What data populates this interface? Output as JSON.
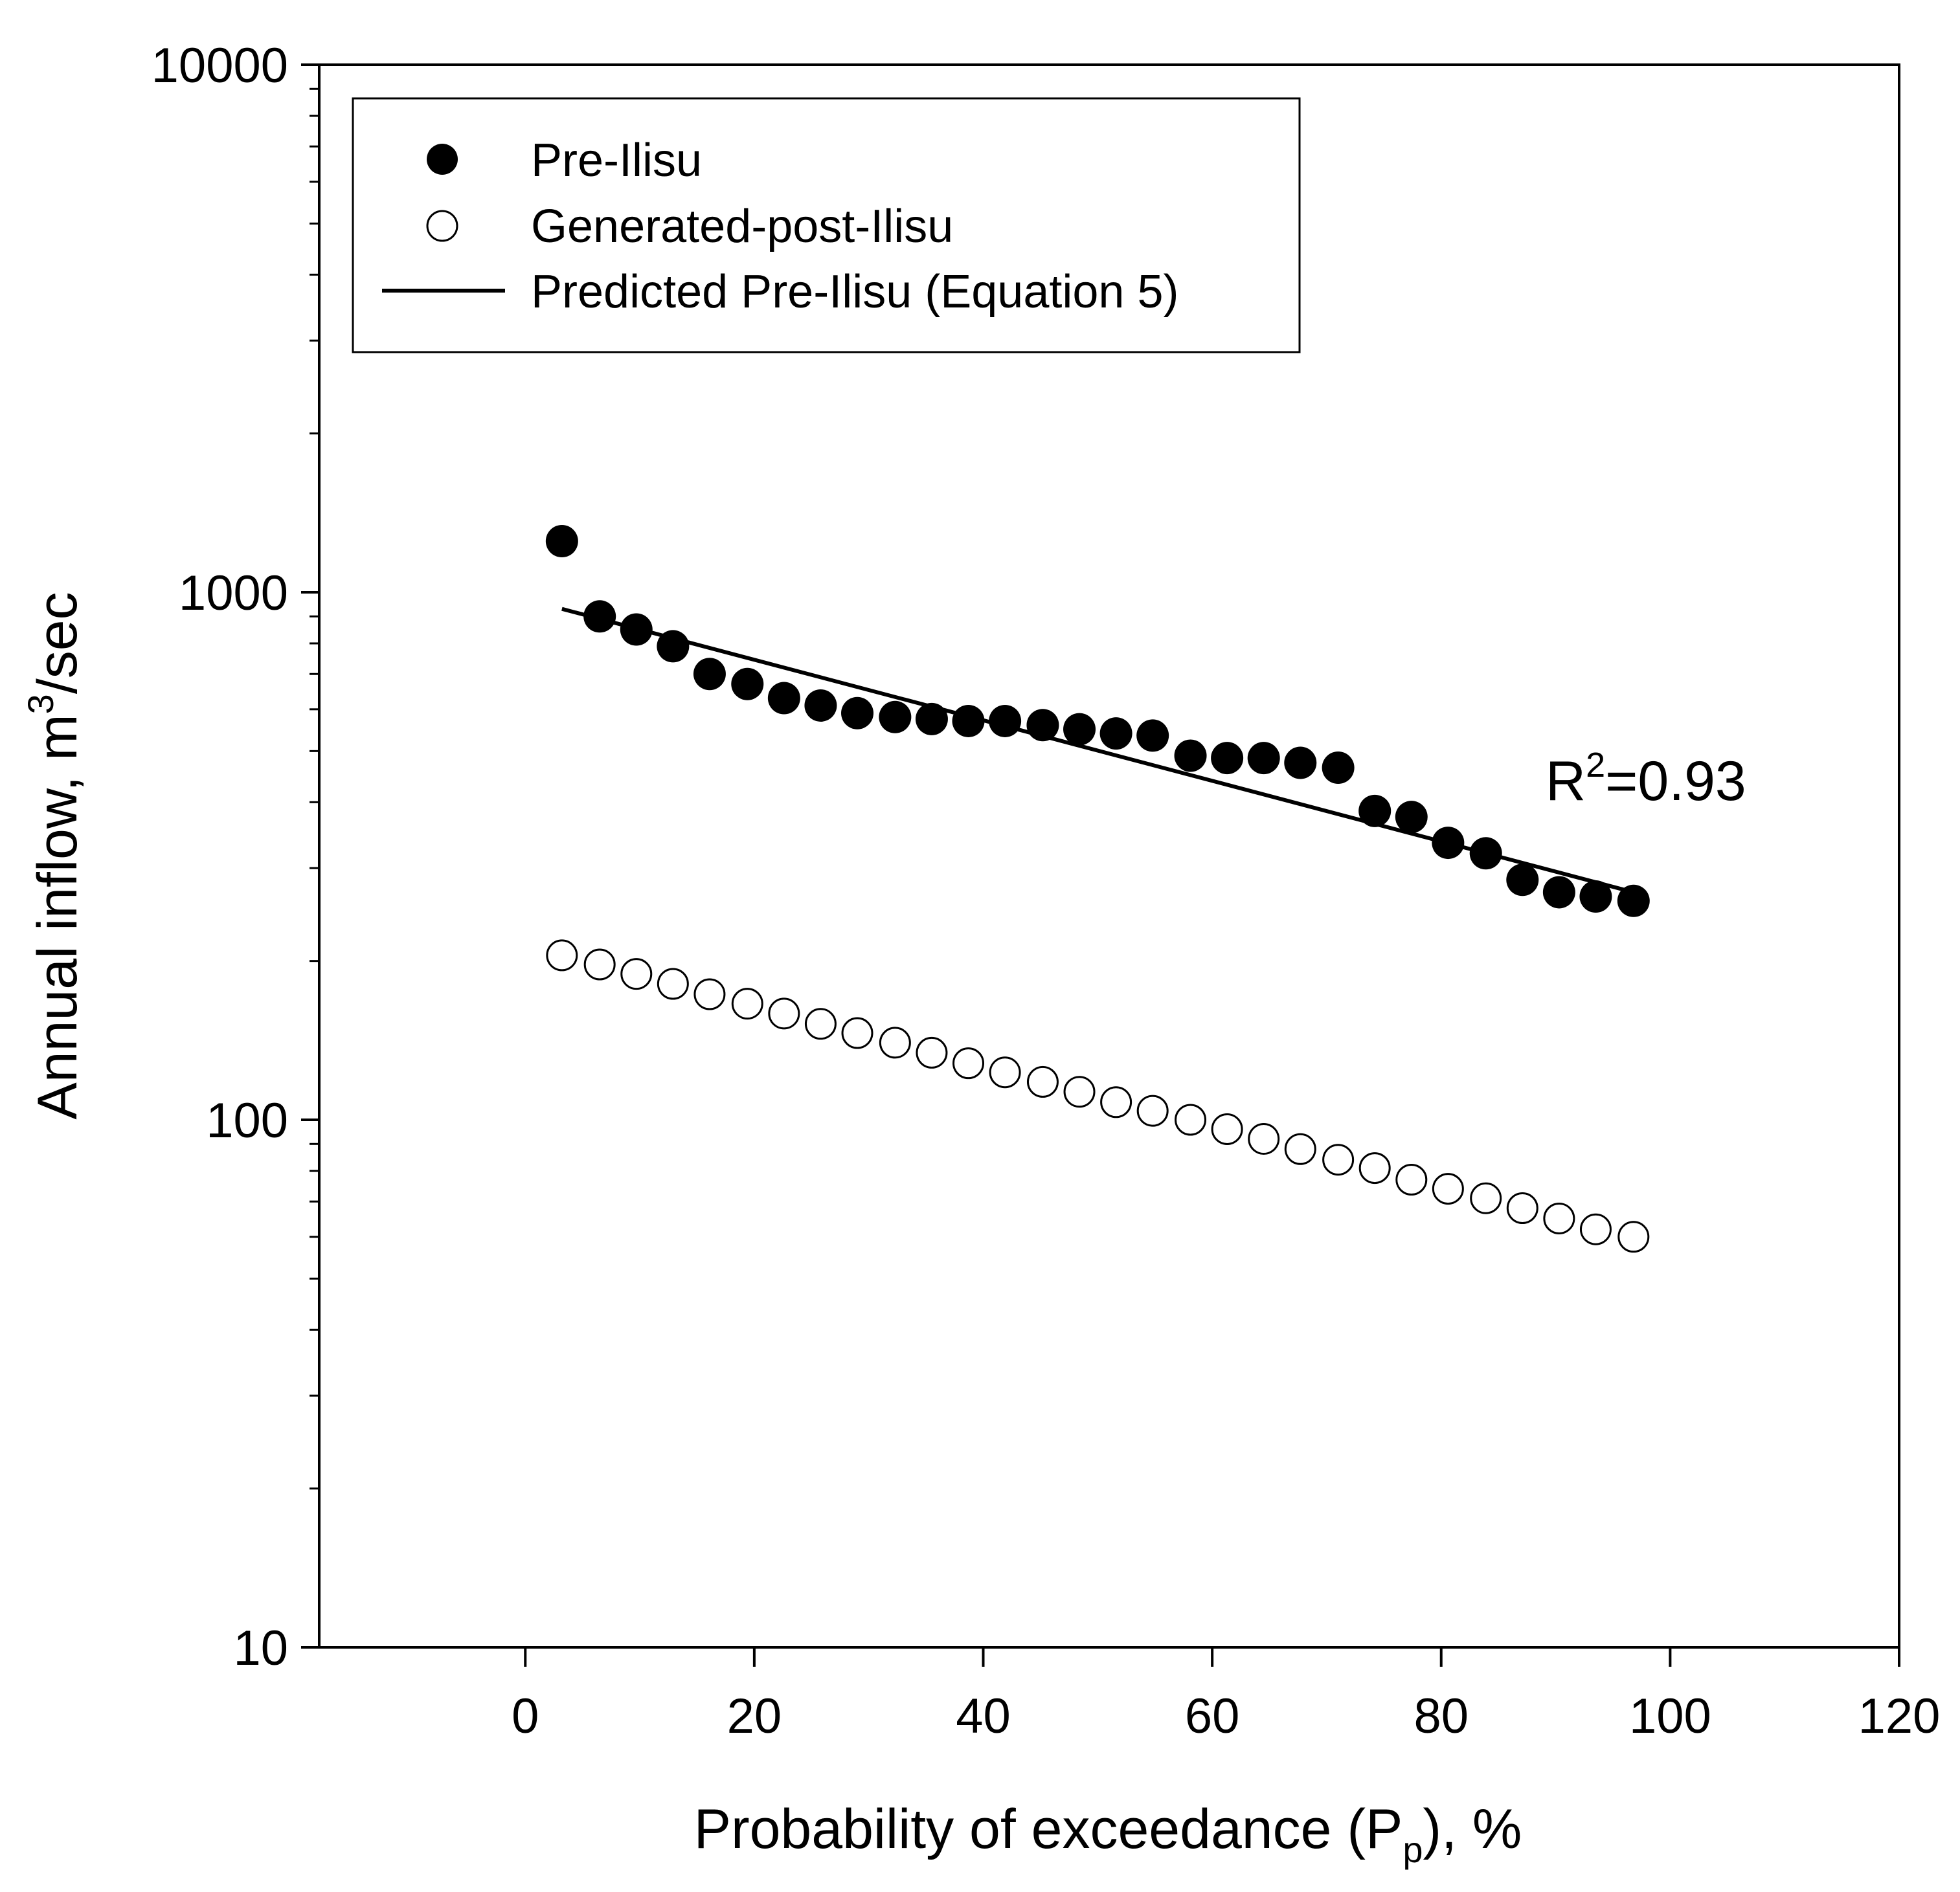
{
  "chart_data": {
    "type": "scatter",
    "title": "",
    "xlabel": "Probability of exceedance (P",
    "xlabel_sub": "p",
    "xlabel_suffix": "), %",
    "ylabel": "Annual inflow, m",
    "ylabel_sup": "3",
    "ylabel_suffix": "/sec",
    "xlim": [
      -18,
      120
    ],
    "ylim": [
      10,
      10000
    ],
    "yscale": "log",
    "xticks": [
      0,
      20,
      40,
      60,
      80,
      100,
      120
    ],
    "xtick_labels": [
      "0",
      "20",
      "40",
      "60",
      "80",
      "100",
      "120"
    ],
    "yticks": [
      10,
      100,
      1000,
      10000
    ],
    "ytick_labels": [
      "10",
      "100",
      "1000",
      "10000"
    ],
    "grid": false,
    "legend_position": "top-left",
    "series": [
      {
        "name": "Pre-Ilisu",
        "marker": "filled-circle",
        "color": "#000000",
        "x": [
          3.2,
          6.5,
          9.7,
          12.9,
          16.1,
          19.4,
          22.6,
          25.8,
          29.0,
          32.3,
          35.5,
          38.7,
          41.9,
          45.2,
          48.4,
          51.6,
          54.8,
          58.1,
          61.3,
          64.5,
          67.7,
          71.0,
          74.2,
          77.4,
          80.6,
          83.9,
          87.1,
          90.3,
          93.5,
          96.8
        ],
        "y": [
          1250,
          900,
          850,
          790,
          700,
          670,
          630,
          610,
          590,
          580,
          575,
          570,
          570,
          560,
          550,
          540,
          535,
          490,
          485,
          485,
          475,
          465,
          385,
          375,
          335,
          320,
          285,
          270,
          265,
          260
        ]
      },
      {
        "name": "Generated-post-Ilisu",
        "marker": "open-circle",
        "color": "#000000",
        "x": [
          3.2,
          6.5,
          9.7,
          12.9,
          16.1,
          19.4,
          22.6,
          25.8,
          29.0,
          32.3,
          35.5,
          38.7,
          41.9,
          45.2,
          48.4,
          51.6,
          54.8,
          58.1,
          61.3,
          64.5,
          67.7,
          71.0,
          74.2,
          77.4,
          80.6,
          83.9,
          87.1,
          90.3,
          93.5,
          96.8
        ],
        "y": [
          205,
          197,
          189,
          181,
          173,
          166,
          159,
          152,
          146,
          140,
          134,
          128,
          123,
          118,
          113,
          108,
          104,
          100,
          96,
          92,
          88,
          84,
          81,
          77,
          74,
          71,
          68,
          65,
          62,
          60
        ]
      },
      {
        "name": "Predicted Pre-Ilisu (Equation 5)",
        "marker": "line",
        "color": "#000000",
        "x": [
          3.2,
          96.8
        ],
        "y": [
          930,
          270
        ]
      }
    ],
    "annotations": [
      {
        "text": "R",
        "sup": "2",
        "suffix": "=0.93",
        "x": 89,
        "y": 400
      }
    ]
  }
}
